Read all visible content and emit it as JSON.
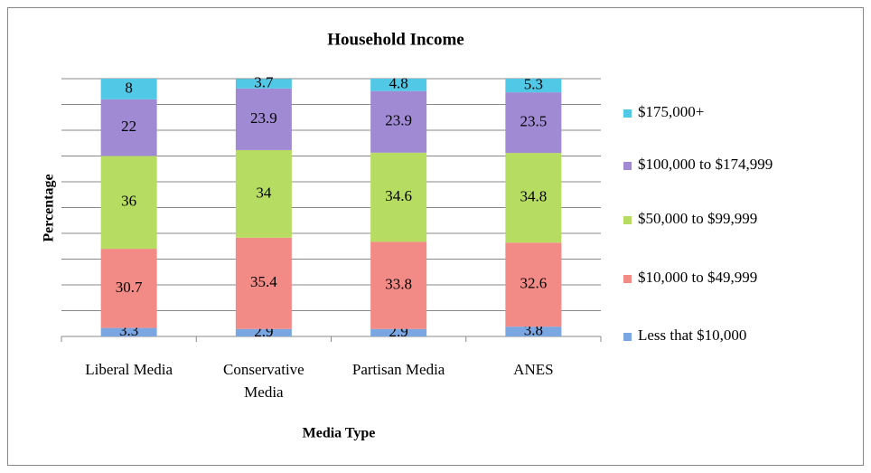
{
  "chart_data": {
    "type": "stacked_bar",
    "title": "Household Income",
    "x_label": "Media Type",
    "y_label": "Percentage",
    "categories": [
      "Liberal Media",
      "Conservative Media",
      "Partisan Media",
      "ANES"
    ],
    "series": [
      {
        "name": "Less that $10,000",
        "color": "#7aa6e2",
        "values": [
          3.3,
          2.9,
          2.9,
          3.8
        ]
      },
      {
        "name": "$10,000 to $49,999",
        "color": "#f28a86",
        "values": [
          30.7,
          35.4,
          33.8,
          32.6
        ]
      },
      {
        "name": "$50,000 to $99,999",
        "color": "#b6dc62",
        "values": [
          36,
          34,
          34.6,
          34.8
        ]
      },
      {
        "name": "$100,000 to $174,999",
        "color": "#a18ad4",
        "values": [
          22,
          23.9,
          23.9,
          23.5
        ]
      },
      {
        "name": "$175,000+",
        "color": "#50c8e6",
        "values": [
          8,
          3.7,
          4.8,
          5.3
        ]
      }
    ],
    "ylim": [
      0,
      100
    ],
    "yticks": [
      0,
      10,
      20,
      30,
      40,
      50,
      60,
      70,
      80,
      90,
      100
    ],
    "grid": true
  }
}
